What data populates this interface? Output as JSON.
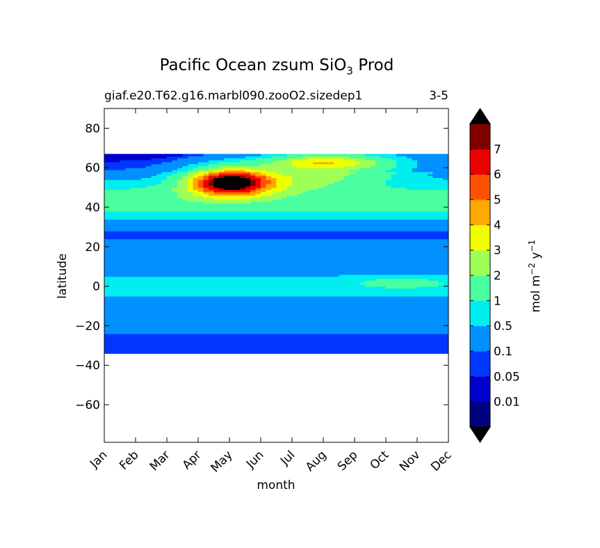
{
  "chart_data": {
    "type": "heatmap",
    "title": "Pacific Ocean zsum SiO3 Prod",
    "title_parts": {
      "prefix": "Pacific Ocean zsum SiO",
      "subscript": "3",
      "suffix": " Prod"
    },
    "subtitle_left": "giaf.e20.T62.g16.marbl090.zooO2.sizedep1",
    "subtitle_right": "3-5",
    "xlabel": "month",
    "ylabel": "latitude",
    "x_categories": [
      "Jan",
      "Feb",
      "Mar",
      "Apr",
      "May",
      "Jun",
      "Jul",
      "Aug",
      "Sep",
      "Oct",
      "Nov",
      "Dec"
    ],
    "yticks": [
      {
        "value": 80,
        "label": "80"
      },
      {
        "value": 60,
        "label": "60"
      },
      {
        "value": 40,
        "label": "40"
      },
      {
        "value": 20,
        "label": "20"
      },
      {
        "value": 0,
        "label": "0"
      },
      {
        "value": -20,
        "label": "−20"
      },
      {
        "value": -40,
        "label": "−40"
      },
      {
        "value": -60,
        "label": "−60"
      }
    ],
    "ylim": [
      -79,
      90
    ],
    "data_lat_range": [
      -34,
      67
    ],
    "colorbar": {
      "label": "mol m⁻² y⁻¹",
      "label_parts": {
        "a": "mol m",
        "exp1": "−2",
        "b": " y",
        "exp2": "−1"
      },
      "extend": "both",
      "levels": [
        0.01,
        0.05,
        0.1,
        0.5,
        1,
        2,
        3,
        4,
        5,
        6,
        7
      ],
      "level_labels": [
        "0.01",
        "0.05",
        "0.1",
        "0.5",
        "1",
        "2",
        "3",
        "4",
        "5",
        "6",
        "7"
      ],
      "colors": [
        "#000080",
        "#0000cd",
        "#0037ff",
        "#0090ff",
        "#00eef0",
        "#49ff9f",
        "#a0ff56",
        "#f0ff00",
        "#ffa800",
        "#ff5200",
        "#ed0000",
        "#800000"
      ],
      "under_color": "#000000",
      "over_color": "#000000"
    },
    "field_lat_profile": {
      "comment_free": true,
      "lat": [
        -34,
        -32,
        -28,
        -24,
        -20,
        -16,
        -12,
        -8,
        -4,
        0,
        4,
        8,
        12,
        16,
        20,
        24,
        28,
        32,
        36,
        40,
        44,
        48,
        52,
        56,
        60,
        64,
        67
      ],
      "base": [
        0.07,
        0.09,
        0.07,
        0.09,
        0.2,
        0.3,
        0.35,
        0.3,
        0.55,
        0.7,
        0.6,
        0.25,
        0.5,
        0.35,
        0.3,
        0.09,
        0.09,
        0.3,
        0.7,
        1.2,
        1.4,
        1.1,
        0.6,
        0.3,
        0.15,
        0.08,
        0.04
      ]
    },
    "hotspot": {
      "month": 4.0,
      "lat": 53,
      "peak": 7.6,
      "month_sigma": 1.2,
      "lat_sigma": 6.5
    }
  }
}
